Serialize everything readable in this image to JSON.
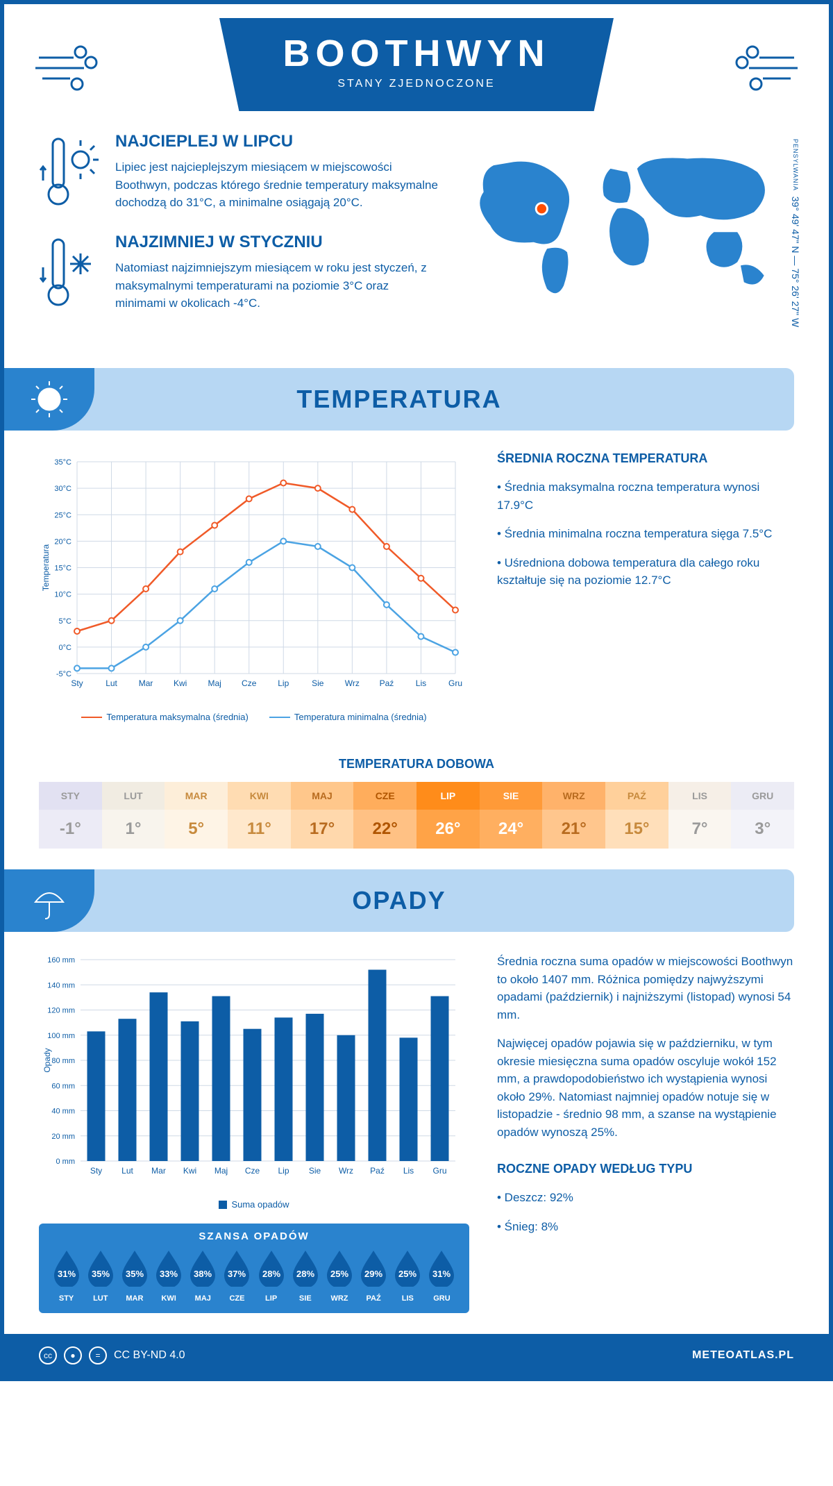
{
  "header": {
    "title": "BOOTHWYN",
    "subtitle": "STANY ZJEDNOCZONE"
  },
  "coords": {
    "text": "39° 49' 47\" N — 75° 26' 27\" W",
    "state": "PENSYLWANIA"
  },
  "intro": {
    "warm": {
      "heading": "NAJCIEPLEJ W LIPCU",
      "text": "Lipiec jest najcieplejszym miesiącem w miejscowości Boothwyn, podczas którego średnie temperatury maksymalne dochodzą do 31°C, a minimalne osiągają 20°C."
    },
    "cold": {
      "heading": "NAJZIMNIEJ W STYCZNIU",
      "text": "Natomiast najzimniejszym miesiącem w roku jest styczeń, z maksymalnymi temperaturami na poziomie 3°C oraz minimami w okolicach -4°C."
    }
  },
  "temp_section": {
    "title": "TEMPERATURA",
    "chart": {
      "type": "line",
      "months": [
        "Sty",
        "Lut",
        "Mar",
        "Kwi",
        "Maj",
        "Cze",
        "Lip",
        "Sie",
        "Wrz",
        "Paź",
        "Lis",
        "Gru"
      ],
      "max_series": {
        "label": "Temperatura maksymalna (średnia)",
        "color": "#f05a28",
        "values": [
          3,
          5,
          11,
          18,
          23,
          28,
          31,
          30,
          26,
          19,
          13,
          7
        ]
      },
      "min_series": {
        "label": "Temperatura minimalna (średnia)",
        "color": "#4ba3e3",
        "values": [
          -4,
          -4,
          0,
          5,
          11,
          16,
          20,
          19,
          15,
          8,
          2,
          -1
        ]
      },
      "ylabel": "Temperatura",
      "ylim": [
        -5,
        35
      ],
      "ytick_step": 5,
      "grid_color": "#cfd9e6",
      "bg": "#ffffff"
    },
    "side": {
      "heading": "ŚREDNIA ROCZNA TEMPERATURA",
      "b1": "• Średnia maksymalna roczna temperatura wynosi 17.9°C",
      "b2": "• Średnia minimalna roczna temperatura sięga 7.5°C",
      "b3": "• Uśredniona dobowa temperatura dla całego roku kształtuje się na poziomie 12.7°C"
    },
    "daily": {
      "title": "TEMPERATURA DOBOWA",
      "months": [
        "STY",
        "LUT",
        "MAR",
        "KWI",
        "MAJ",
        "CZE",
        "LIP",
        "SIE",
        "WRZ",
        "PAŹ",
        "LIS",
        "GRU"
      ],
      "values": [
        "-1°",
        "1°",
        "5°",
        "11°",
        "17°",
        "22°",
        "26°",
        "24°",
        "21°",
        "15°",
        "7°",
        "3°"
      ],
      "month_colors": [
        "#e2e1f2",
        "#f1ece2",
        "#fdeed9",
        "#ffdcb2",
        "#ffc78b",
        "#ffad5c",
        "#ff8c1a",
        "#ff9a38",
        "#ffb26a",
        "#ffd09b",
        "#f6efe7",
        "#ececf5"
      ],
      "val_colors": [
        "#ecebf6",
        "#f8f4ed",
        "#fef4e6",
        "#ffe8cc",
        "#ffd8ac",
        "#ffc184",
        "#ffa347",
        "#ffaf60",
        "#ffc68d",
        "#ffdfba",
        "#faf6f0",
        "#f3f3f9"
      ],
      "text_colors": [
        "#9a9a9a",
        "#9a9a9a",
        "#c78a3d",
        "#c78a3d",
        "#b86b1f",
        "#b05500",
        "#ffffff",
        "#ffffff",
        "#b86b1f",
        "#c78a3d",
        "#9a9a9a",
        "#9a9a9a"
      ]
    }
  },
  "precip_section": {
    "title": "OPADY",
    "chart": {
      "type": "bar",
      "months": [
        "Sty",
        "Lut",
        "Mar",
        "Kwi",
        "Maj",
        "Cze",
        "Lip",
        "Sie",
        "Wrz",
        "Paź",
        "Lis",
        "Gru"
      ],
      "values": [
        103,
        113,
        134,
        111,
        131,
        105,
        114,
        117,
        100,
        152,
        98,
        131
      ],
      "color": "#0d5da6",
      "ylabel": "Opady",
      "legend": "Suma opadów",
      "ylim": [
        0,
        160
      ],
      "ytick_step": 20,
      "grid_color": "#cfd9e6"
    },
    "side": {
      "p1": "Średnia roczna suma opadów w miejscowości Boothwyn to około 1407 mm. Różnica pomiędzy najwyższymi opadami (październik) i najniższymi (listopad) wynosi 54 mm.",
      "p2": "Najwięcej opadów pojawia się w październiku, w tym okresie miesięczna suma opadów oscyluje wokół 152 mm, a prawdopodobieństwo ich wystąpienia wynosi około 29%. Natomiast najmniej opadów notuje się w listopadzie - średnio 98 mm, a szanse na wystąpienie opadów wynoszą 25%.",
      "type_heading": "ROCZNE OPADY WEDŁUG TYPU",
      "rain": "• Deszcz: 92%",
      "snow": "• Śnieg: 8%"
    },
    "chance": {
      "title": "SZANSA OPADÓW",
      "months": [
        "STY",
        "LUT",
        "MAR",
        "KWI",
        "MAJ",
        "CZE",
        "LIP",
        "SIE",
        "WRZ",
        "PAŹ",
        "LIS",
        "GRU"
      ],
      "values": [
        "31%",
        "35%",
        "35%",
        "33%",
        "38%",
        "37%",
        "28%",
        "28%",
        "25%",
        "29%",
        "25%",
        "31%"
      ],
      "drop_fill": "#0d5da6"
    }
  },
  "footer": {
    "license": "CC BY-ND 4.0",
    "site": "METEOATLAS.PL"
  }
}
